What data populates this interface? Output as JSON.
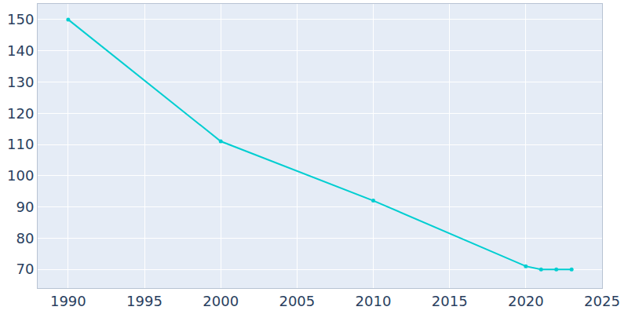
{
  "chart_data": {
    "type": "line",
    "x": [
      1990,
      2000,
      2010,
      2020,
      2021,
      2022,
      2023
    ],
    "values": [
      150,
      111,
      92,
      71,
      70,
      70,
      70
    ],
    "color": "#00ced1",
    "marker": "circle",
    "xlim": [
      1988,
      2025
    ],
    "ylim": [
      64,
      155
    ],
    "xticks": [
      1990,
      1995,
      2000,
      2005,
      2010,
      2015,
      2020,
      2025
    ],
    "yticks": [
      70,
      80,
      90,
      100,
      110,
      120,
      130,
      140,
      150
    ],
    "grid": true
  }
}
